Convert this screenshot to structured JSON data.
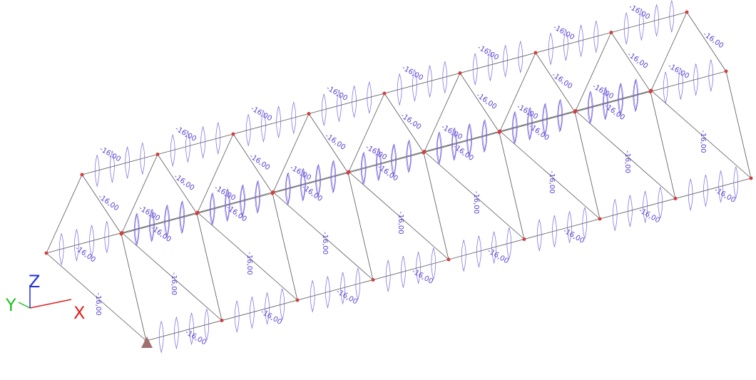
{
  "axes": {
    "x": "X",
    "y": "Y",
    "z": "Z"
  },
  "labels": [
    "-16,00",
    "-16,00",
    "-16,00",
    "-16,00",
    "-16,00",
    "-16,00",
    "-16,00",
    "-16,00",
    "-16,00",
    "-16,00",
    "-16,00",
    "-16,00",
    "-16,00",
    "-16,00",
    "-16,00",
    "-16,00",
    "-16,00",
    "-16,00",
    "-16,00",
    "-16,00",
    "-16,00",
    "-16,00",
    "-16,00",
    "-16,00",
    "-16,00",
    "-16,00",
    "-16,00",
    "-16,00",
    "-16,00",
    "-16,00",
    "-16,00",
    "-16,00",
    "-16,00",
    "-16,00",
    "-16,00",
    "-16,00",
    "-16,00",
    "-16,00",
    "-16,00",
    "-16,00",
    "-16,00",
    "-16,00",
    "-16,00",
    "-16,00",
    "-16,00",
    "-16,00",
    "-16,00",
    "-16,00",
    "-16,00",
    "-16,00"
  ]
}
